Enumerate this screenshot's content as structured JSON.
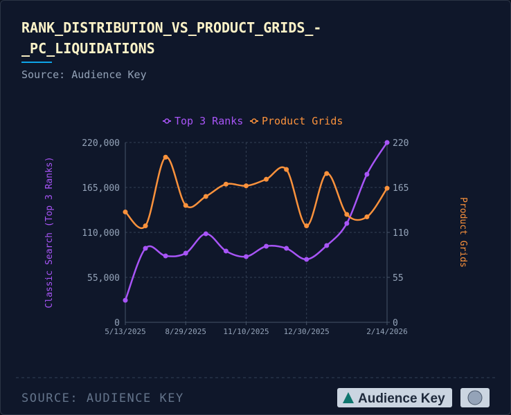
{
  "chart_data": {
    "type": "line",
    "title": "RANK_DISTRIBUTION_VS_PRODUCT_GRIDS_-_PC_LIQUIDATIONS",
    "subtitle": "Source: Audience Key",
    "y_label": "Classic Search (Top 3 Ranks)",
    "y2_label": "Product Grids",
    "categories": [
      "5/13/2025",
      null,
      null,
      "8/29/2025",
      null,
      null,
      "11/10/2025",
      null,
      null,
      "12/30/2025",
      null,
      null,
      null,
      "2/14/2026"
    ],
    "series": [
      {
        "name": "Top 3 Ranks",
        "color": "#a855f7",
        "values": [
          27000,
          90500,
          81200,
          84600,
          108300,
          87200,
          80400,
          93100,
          90500,
          77000,
          93900,
          121000,
          181100,
          220000
        ]
      },
      {
        "name": "Product Grids",
        "color": "#fb923c",
        "axis": "y2",
        "values": [
          135,
          118,
          202,
          143,
          154,
          169,
          167,
          175,
          187,
          118,
          182,
          132,
          129,
          164
        ]
      }
    ],
    "ylim": [
      0,
      220000
    ],
    "yticks": [
      0,
      {
        "value": 55000,
        "label": "55,000"
      },
      {
        "value": 110000,
        "label": "110,000"
      },
      {
        "value": 165000,
        "label": "165,000"
      },
      {
        "value": 220000,
        "label": "220,000"
      }
    ],
    "y2lim": [
      0,
      220
    ],
    "y2ticks": [
      0,
      55,
      110,
      165,
      220
    ],
    "grid": true
  },
  "footer": {
    "source": "SOURCE: AUDIENCE KEY",
    "logo": "Audience Key"
  }
}
